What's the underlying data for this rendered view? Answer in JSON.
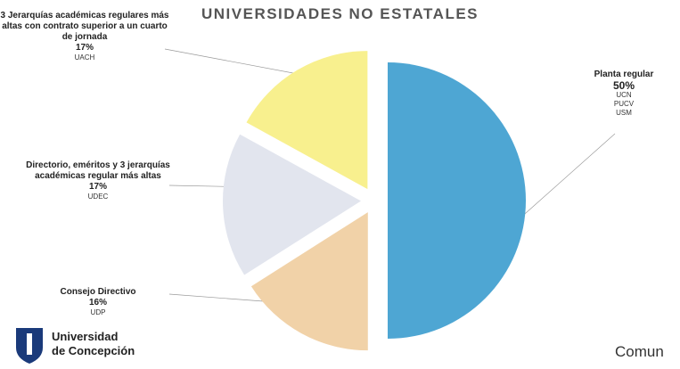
{
  "chart_data": {
    "type": "pie",
    "title": "UNIVERSIDADES NO ESTATALES",
    "categories": [
      "Planta regular",
      "Consejo Directivo",
      "Directorio, eméritos y 3 jerarquías académicas regular más altas",
      "3 Jerarquías académicas regulares más altas con contrato superior a un cuarto de jornada"
    ],
    "values": [
      50,
      16,
      17,
      17
    ],
    "value_labels": [
      "50%",
      "16%",
      "17%",
      "17%"
    ],
    "universities": [
      [
        "UCN",
        "PUCV",
        "USM"
      ],
      [
        "UDP"
      ],
      [
        "UDEC"
      ],
      [
        "UACH"
      ]
    ],
    "colors": [
      "#4ea6d3",
      "#f1d2a8",
      "#e2e5ee",
      "#f8f08e"
    ]
  },
  "footer": {
    "logo_line1": "Universidad",
    "logo_line2": "de Concepción",
    "corner_text": "Comun"
  }
}
